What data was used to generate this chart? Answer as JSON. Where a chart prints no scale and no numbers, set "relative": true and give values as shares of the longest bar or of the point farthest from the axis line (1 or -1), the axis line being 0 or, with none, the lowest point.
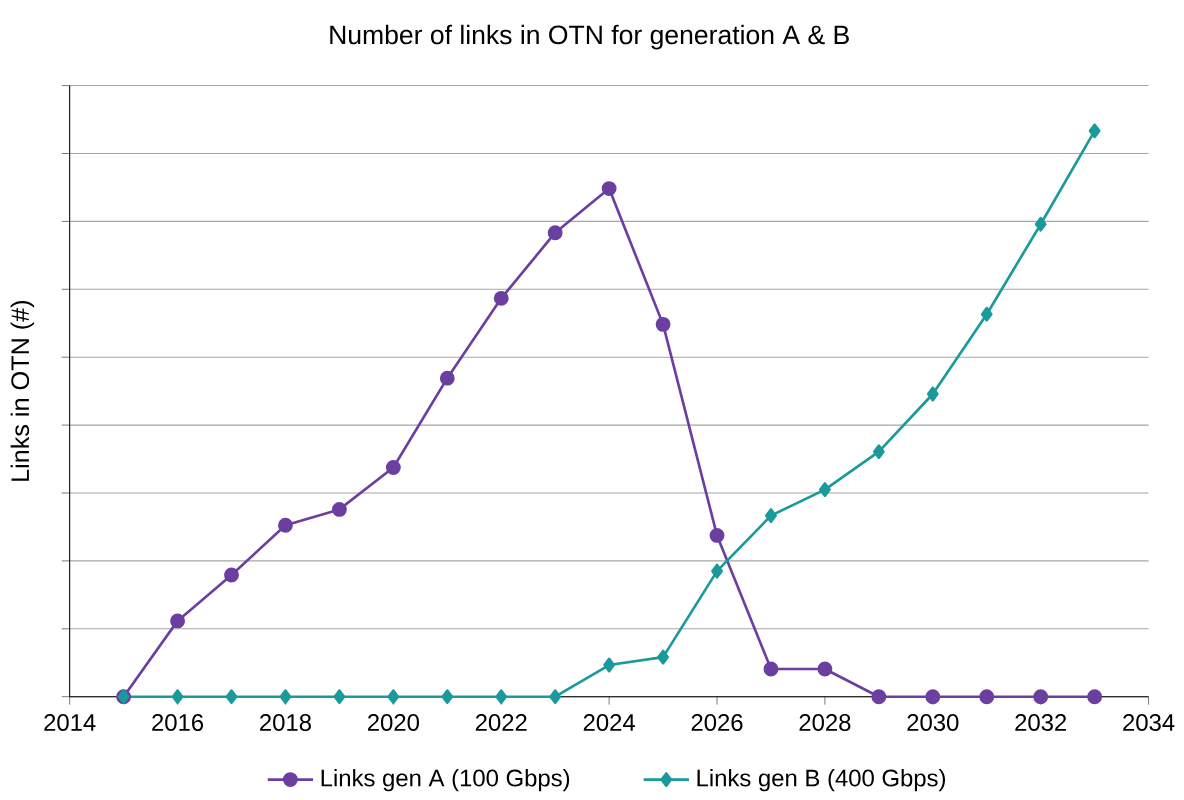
{
  "chart_data": {
    "type": "line",
    "title": "Number of links in OTN for generation A & B",
    "ylabel": "Links in OTN (#)",
    "relative": true,
    "x": [
      2015,
      2016,
      2017,
      2018,
      2019,
      2020,
      2021,
      2022,
      2023,
      2024,
      2025,
      2026,
      2027,
      2028,
      2029,
      2030,
      2031,
      2032,
      2033
    ],
    "xlim": [
      2014,
      2034
    ],
    "xticks": [
      2014,
      2016,
      2018,
      2020,
      2022,
      2024,
      2026,
      2028,
      2030,
      2032,
      2034
    ],
    "series": [
      {
        "name": "Links gen A (100 Gbps)",
        "color": "#6b3fa0",
        "marker": "circle",
        "values": [
          0,
          0.134,
          0.215,
          0.303,
          0.331,
          0.405,
          0.563,
          0.704,
          0.82,
          0.898,
          0.658,
          0.285,
          0.049,
          0.049,
          0,
          0,
          0,
          0,
          0
        ]
      },
      {
        "name": "Links gen B (400 Gbps)",
        "color": "#1a9a9a",
        "marker": "diamond",
        "values": [
          0,
          0,
          0,
          0,
          0,
          0,
          0,
          0,
          0,
          0.056,
          0.07,
          0.222,
          0.32,
          0.366,
          0.433,
          0.535,
          0.676,
          0.835,
          1
        ]
      }
    ],
    "grid": "y",
    "legend": "bottom",
    "tick_labels": "x",
    "line_style": "solid"
  }
}
